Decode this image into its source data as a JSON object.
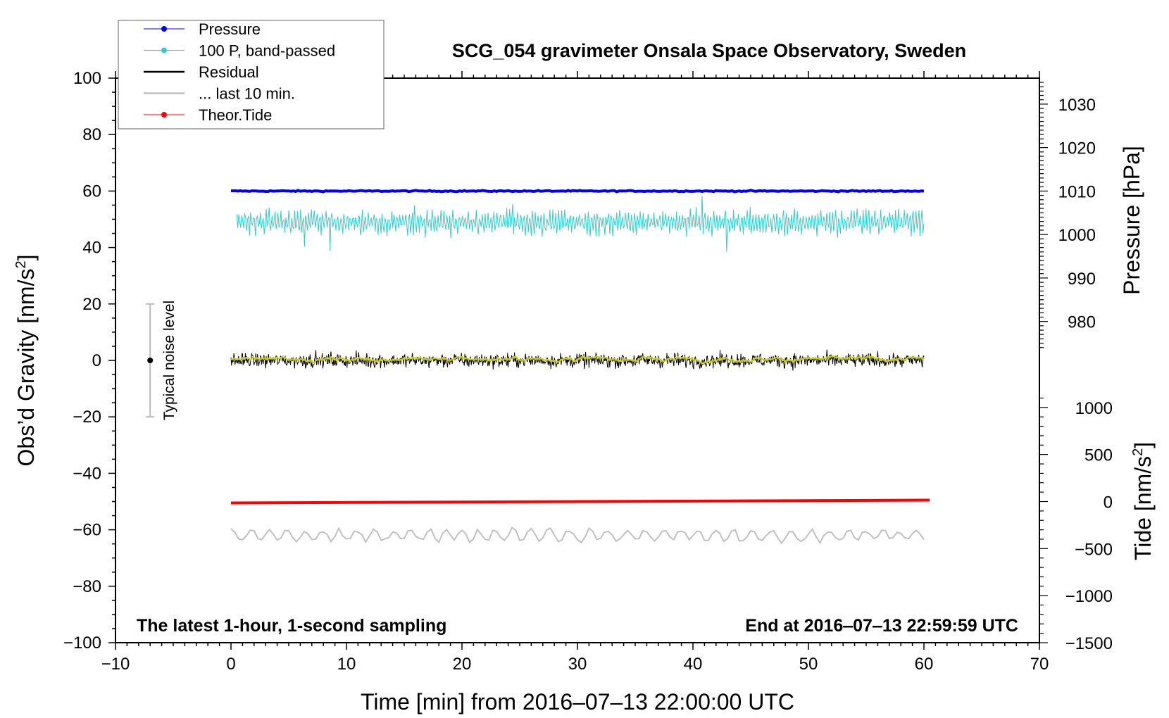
{
  "chart_data": {
    "type": "line",
    "title": "SCG_054 gravimeter Onsala Space Observatory, Sweden",
    "xlabel": "Time [min] from 2016‒07‒13 22:00:00 UTC",
    "ylabel": "Obs’d Gravity [nm/s",
    "ylabel_sup": "2",
    "ylabel_end": "]",
    "y2label": "Pressure [hPa]",
    "y3label": "Tide [nm/s",
    "y3label_sup": "2",
    "y3label_end": "]",
    "xlim": [
      -10,
      70
    ],
    "ylim": [
      -100,
      100
    ],
    "xticks": [
      "−10",
      "0",
      "10",
      "20",
      "30",
      "40",
      "50",
      "60",
      "70"
    ],
    "xtick_values": [
      -10,
      0,
      10,
      20,
      30,
      40,
      50,
      60,
      70
    ],
    "yticks": [
      "100",
      "80",
      "60",
      "40",
      "20",
      "0",
      "−20",
      "−40",
      "−60",
      "−80",
      "−100"
    ],
    "ytick_values": [
      100,
      80,
      60,
      40,
      20,
      0,
      -20,
      -40,
      -60,
      -80,
      -100
    ],
    "pressure_ticks": [
      "1030",
      "1020",
      "1010",
      "1000",
      "990",
      "980"
    ],
    "pressure_tick_values": [
      1030,
      1020,
      1010,
      1000,
      990,
      980
    ],
    "tide_ticks": [
      "1000",
      "500",
      "0",
      "−500",
      "−1000",
      "−1500"
    ],
    "tide_tick_values": [
      1000,
      500,
      0,
      -500,
      -1000,
      -1500
    ],
    "grid": false,
    "legend_placement": "top-left",
    "annotations": {
      "left": "The latest 1-hour, 1-second sampling",
      "right": "End at 2016‒07‒13 22:59:59 UTC",
      "noise": "Typical noise level"
    },
    "noise_level": {
      "x": -7,
      "center": 0,
      "range": [
        -20,
        20
      ]
    },
    "series": [
      {
        "name": "Pressure",
        "color": "#0000ff",
        "axis": "pressure",
        "x_range": [
          0,
          60
        ],
        "level": 1010,
        "noise": 0.1
      },
      {
        "name": "100 P, band‑passed",
        "color": "#33cccc",
        "axis": "gravity",
        "x_range": [
          0.5,
          60
        ],
        "level": 49,
        "noise": 4.5
      },
      {
        "name": "Residual",
        "color": "#000000",
        "axis": "gravity",
        "x_range": [
          0,
          60
        ],
        "level": 0,
        "noise": 1.8,
        "smoothed_color": "#cccc00"
      },
      {
        "name": "... last 10 min.",
        "color": "#c0c0c0",
        "axis": "gravity",
        "x_range": [
          0,
          60
        ],
        "level": -62,
        "noise": 2
      },
      {
        "name": "Theor.Tide",
        "color": "#ff0000",
        "axis": "tide",
        "x_range": [
          0,
          60.5
        ],
        "values_start_end": [
          -15,
          15
        ]
      }
    ]
  }
}
